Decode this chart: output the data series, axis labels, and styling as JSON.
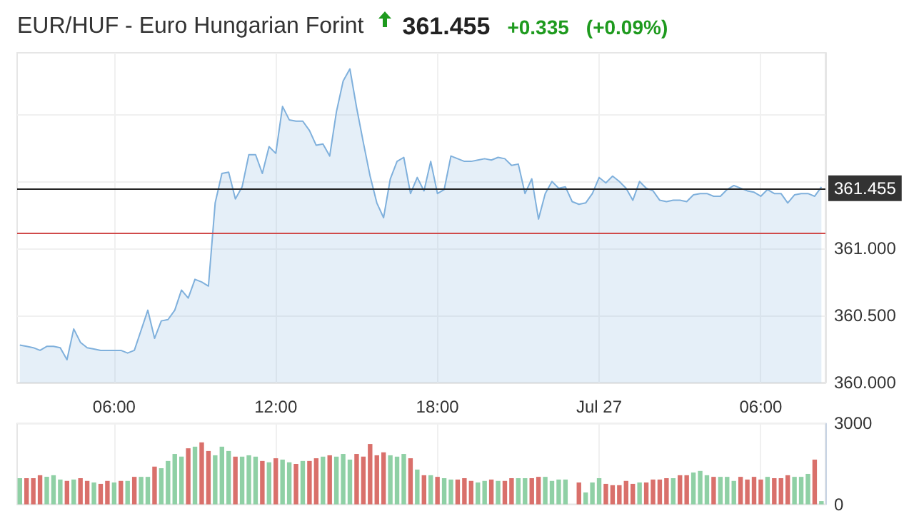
{
  "chart_data": [
    {
      "type": "area",
      "title": "EUR/HUF - Euro Hungarian Forint",
      "annotations": [
        "361.455",
        "+0.335",
        "(+0.09%)"
      ],
      "x": [
        "--07-26T02:30",
        "--07-26T02:45",
        "--07-26T03:00",
        "--07-26T03:15",
        "--07-26T03:30",
        "--07-26T03:45",
        "--07-26T04:00",
        "--07-26T04:15",
        "--07-26T04:30",
        "--07-26T04:45",
        "--07-26T05:00",
        "--07-26T05:15",
        "--07-26T05:30",
        "--07-26T05:45",
        "--07-26T06:00",
        "--07-26T06:15",
        "--07-26T06:30",
        "--07-26T06:45",
        "--07-26T07:00",
        "--07-26T07:15",
        "--07-26T07:30",
        "--07-26T07:45",
        "--07-26T08:00",
        "--07-26T08:15",
        "--07-26T08:30",
        "--07-26T08:45",
        "--07-26T09:00",
        "--07-26T09:15",
        "--07-26T09:30",
        "--07-26T09:45",
        "--07-26T10:00",
        "--07-26T10:15",
        "--07-26T10:30",
        "--07-26T10:45",
        "--07-26T11:00",
        "--07-26T11:15",
        "--07-26T11:30",
        "--07-26T11:45",
        "--07-26T12:00",
        "--07-26T12:15",
        "--07-26T12:30",
        "--07-26T12:45",
        "--07-26T13:00",
        "--07-26T13:15",
        "--07-26T13:30",
        "--07-26T13:45",
        "--07-26T14:00",
        "--07-26T14:15",
        "--07-26T14:30",
        "--07-26T14:45",
        "--07-26T15:00",
        "--07-26T15:15",
        "--07-26T15:30",
        "--07-26T15:45",
        "--07-26T16:00",
        "--07-26T16:15",
        "--07-26T16:30",
        "--07-26T16:45",
        "--07-26T17:00",
        "--07-26T17:15",
        "--07-26T17:30",
        "--07-26T17:45",
        "--07-26T18:00",
        "--07-26T18:15",
        "--07-26T18:30",
        "--07-26T18:45",
        "--07-26T19:00",
        "--07-26T19:15",
        "--07-26T19:30",
        "--07-26T19:45",
        "--07-26T20:00",
        "--07-26T20:15",
        "--07-26T20:30",
        "--07-26T20:45",
        "--07-26T21:00",
        "--07-26T21:15",
        "--07-26T21:30",
        "--07-26T21:45",
        "--07-26T22:00",
        "--07-26T22:15",
        "--07-26T22:30",
        "--07-26T22:45",
        "--07-26T23:00",
        "--07-26T23:15",
        "--07-26T23:30",
        "--07-26T23:45",
        "--07-27T00:00",
        "--07-27T00:15",
        "--07-27T00:30",
        "--07-27T00:45",
        "--07-27T01:00",
        "--07-27T01:15",
        "--07-27T01:30",
        "--07-27T01:45",
        "--07-27T02:00",
        "--07-27T02:15",
        "--07-27T02:30",
        "--07-27T02:45",
        "--07-27T03:00",
        "--07-27T03:15",
        "--07-27T03:30",
        "--07-27T03:45",
        "--07-27T04:00",
        "--07-27T04:15",
        "--07-27T04:30",
        "--07-27T04:45",
        "--07-27T05:00",
        "--07-27T05:15",
        "--07-27T05:30",
        "--07-27T05:45",
        "--07-27T06:00",
        "--07-27T06:15",
        "--07-27T06:30",
        "--07-27T06:45",
        "--07-27T07:00",
        "--07-27T07:15",
        "--07-27T07:30",
        "--07-27T07:45",
        "--07-27T08:00",
        "--07-27T08:15"
      ],
      "series": [
        {
          "color": "#7fb0dc",
          "values": [
            360.28,
            360.27,
            360.26,
            360.24,
            360.27,
            360.27,
            360.26,
            360.17,
            360.4,
            360.3,
            360.26,
            360.25,
            360.24,
            360.24,
            360.24,
            360.24,
            360.22,
            360.24,
            360.39,
            360.54,
            360.33,
            360.46,
            360.47,
            360.54,
            360.69,
            360.63,
            360.77,
            360.75,
            360.72,
            361.34,
            361.56,
            361.57,
            361.37,
            361.46,
            361.7,
            361.7,
            361.56,
            361.76,
            361.71,
            362.06,
            361.96,
            361.95,
            361.95,
            361.88,
            361.77,
            361.78,
            361.69,
            362.02,
            362.25,
            362.34,
            362.05,
            361.79,
            361.54,
            361.34,
            361.23,
            361.52,
            361.65,
            361.68,
            361.41,
            361.53,
            361.43,
            361.65,
            361.41,
            361.44,
            361.69,
            361.67,
            361.65,
            361.65,
            361.66,
            361.67,
            361.66,
            361.68,
            361.67,
            361.62,
            361.63,
            361.41,
            361.52,
            361.22,
            361.41,
            361.5,
            361.45,
            361.46,
            361.35,
            361.33,
            361.34,
            361.41,
            361.53,
            361.49,
            361.54,
            361.5,
            361.45,
            361.36,
            361.5,
            361.45,
            361.43,
            361.36,
            361.35,
            361.36,
            361.36,
            361.35,
            361.4,
            361.41,
            361.41,
            361.39,
            361.39,
            361.44,
            361.47,
            361.45,
            361.43,
            361.42,
            361.39,
            361.44,
            361.41,
            361.41,
            361.34,
            361.4,
            361.41,
            361.41,
            361.39,
            361.46
          ]
        }
      ],
      "xlim": [
        "--07-26T02:24",
        "--07-27T08:24"
      ],
      "xticks": [
        {
          "value": "--07-26T06:00",
          "label": "06:00"
        },
        {
          "value": "--07-26T12:00",
          "label": "12:00"
        },
        {
          "value": "--07-26T18:00",
          "label": "18:00"
        },
        {
          "value": "--07-27T00:00",
          "label": "Jul 27"
        },
        {
          "value": "--07-27T06:00",
          "label": "06:00"
        }
      ],
      "ylim": [
        360,
        362.46
      ],
      "yticks": [
        {
          "value": 360,
          "label": "360.000"
        },
        {
          "value": 360.5,
          "label": "360.500"
        },
        {
          "value": 361,
          "label": "361.000"
        },
        {
          "value": 361.5,
          "label": null
        },
        {
          "value": 362,
          "label": null
        }
      ],
      "ref_lines": [
        {
          "axis": "y",
          "value": 361.455,
          "label": "361.455",
          "color": "#222222"
        },
        {
          "axis": "y",
          "value": 361.12,
          "color": "#d04a4a"
        }
      ],
      "grid": true,
      "marker": "none"
    },
    {
      "type": "bar",
      "x": [
        "--07-26T02:30",
        "--07-26T02:45",
        "--07-26T03:00",
        "--07-26T03:15",
        "--07-26T03:30",
        "--07-26T03:45",
        "--07-26T04:00",
        "--07-26T04:15",
        "--07-26T04:30",
        "--07-26T04:45",
        "--07-26T05:00",
        "--07-26T05:15",
        "--07-26T05:30",
        "--07-26T05:45",
        "--07-26T06:00",
        "--07-26T06:15",
        "--07-26T06:30",
        "--07-26T06:45",
        "--07-26T07:00",
        "--07-26T07:15",
        "--07-26T07:30",
        "--07-26T07:45",
        "--07-26T08:00",
        "--07-26T08:15",
        "--07-26T08:30",
        "--07-26T08:45",
        "--07-26T09:00",
        "--07-26T09:15",
        "--07-26T09:30",
        "--07-26T09:45",
        "--07-26T10:00",
        "--07-26T10:15",
        "--07-26T10:30",
        "--07-26T10:45",
        "--07-26T11:00",
        "--07-26T11:15",
        "--07-26T11:30",
        "--07-26T11:45",
        "--07-26T12:00",
        "--07-26T12:15",
        "--07-26T12:30",
        "--07-26T12:45",
        "--07-26T13:00",
        "--07-26T13:15",
        "--07-26T13:30",
        "--07-26T13:45",
        "--07-26T14:00",
        "--07-26T14:15",
        "--07-26T14:30",
        "--07-26T14:45",
        "--07-26T15:00",
        "--07-26T15:15",
        "--07-26T15:30",
        "--07-26T15:45",
        "--07-26T16:00",
        "--07-26T16:15",
        "--07-26T16:30",
        "--07-26T16:45",
        "--07-26T17:00",
        "--07-26T17:15",
        "--07-26T17:30",
        "--07-26T17:45",
        "--07-26T18:00",
        "--07-26T18:15",
        "--07-26T18:30",
        "--07-26T18:45",
        "--07-26T19:00",
        "--07-26T19:15",
        "--07-26T19:30",
        "--07-26T19:45",
        "--07-26T20:00",
        "--07-26T20:15",
        "--07-26T20:30",
        "--07-26T20:45",
        "--07-26T21:00",
        "--07-26T21:15",
        "--07-26T21:30",
        "--07-26T21:45",
        "--07-26T22:00",
        "--07-26T22:15",
        "--07-26T22:30",
        "--07-26T22:45",
        "--07-26T23:00",
        "--07-26T23:15",
        "--07-26T23:30",
        "--07-26T23:45",
        "--07-27T00:00",
        "--07-27T00:15",
        "--07-27T00:30",
        "--07-27T00:45",
        "--07-27T01:00",
        "--07-27T01:15",
        "--07-27T01:30",
        "--07-27T01:45",
        "--07-27T02:00",
        "--07-27T02:15",
        "--07-27T02:30",
        "--07-27T02:45",
        "--07-27T03:00",
        "--07-27T03:15",
        "--07-27T03:30",
        "--07-27T03:45",
        "--07-27T04:00",
        "--07-27T04:15",
        "--07-27T04:30",
        "--07-27T04:45",
        "--07-27T05:00",
        "--07-27T05:15",
        "--07-27T05:30",
        "--07-27T05:45",
        "--07-27T06:00",
        "--07-27T06:15",
        "--07-27T06:30",
        "--07-27T06:45",
        "--07-27T07:00",
        "--07-27T07:15",
        "--07-27T07:30",
        "--07-27T07:45",
        "--07-27T08:00",
        "--07-27T08:15"
      ],
      "values": [
        970,
        970,
        970,
        1080,
        1020,
        1080,
        920,
        870,
        920,
        970,
        870,
        810,
        760,
        870,
        810,
        870,
        870,
        1020,
        1020,
        1020,
        1400,
        1340,
        1610,
        1870,
        1770,
        2080,
        2140,
        2300,
        1980,
        1820,
        2140,
        1980,
        1770,
        1770,
        1820,
        1770,
        1610,
        1560,
        1710,
        1660,
        1560,
        1500,
        1610,
        1610,
        1710,
        1770,
        1820,
        1770,
        1870,
        1660,
        1870,
        1770,
        2240,
        1820,
        1930,
        1820,
        1770,
        1870,
        1710,
        1290,
        1080,
        1080,
        1020,
        970,
        920,
        920,
        970,
        870,
        810,
        870,
        920,
        870,
        870,
        970,
        970,
        970,
        970,
        1020,
        1020,
        870,
        920,
        920,
        null,
        810,
        440,
        810,
        970,
        760,
        710,
        710,
        870,
        760,
        810,
        810,
        920,
        920,
        970,
        970,
        1080,
        1080,
        1180,
        1240,
        1080,
        1020,
        1020,
        1020,
        870,
        1020,
        920,
        1020,
        920,
        1020,
        970,
        970,
        1080,
        1020,
        1020,
        1130,
        1660,
        120
      ],
      "colors": [
        "#8fd0a5",
        "#d9706b",
        "#d9706b",
        "#d9706b",
        "#8fd0a5",
        "#8fd0a5",
        "#8fd0a5",
        "#d9706b",
        "#8fd0a5",
        "#d9706b",
        "#d9706b",
        "#8fd0a5",
        "#d9706b",
        "#d9706b",
        "#8fd0a5",
        "#d9706b",
        "#8fd0a5",
        "#d9706b",
        "#8fd0a5",
        "#8fd0a5",
        "#d9706b",
        "#8fd0a5",
        "#8fd0a5",
        "#8fd0a5",
        "#8fd0a5",
        "#d9706b",
        "#8fd0a5",
        "#d9706b",
        "#d9706b",
        "#8fd0a5",
        "#8fd0a5",
        "#8fd0a5",
        "#d9706b",
        "#8fd0a5",
        "#8fd0a5",
        "#8fd0a5",
        "#d9706b",
        "#8fd0a5",
        "#d9706b",
        "#8fd0a5",
        "#8fd0a5",
        "#d9706b",
        "#8fd0a5",
        "#d9706b",
        "#d9706b",
        "#8fd0a5",
        "#d9706b",
        "#8fd0a5",
        "#8fd0a5",
        "#8fd0a5",
        "#d9706b",
        "#d9706b",
        "#d9706b",
        "#d9706b",
        "#d9706b",
        "#8fd0a5",
        "#8fd0a5",
        "#8fd0a5",
        "#d9706b",
        "#8fd0a5",
        "#d9706b",
        "#8fd0a5",
        "#d9706b",
        "#8fd0a5",
        "#8fd0a5",
        "#d9706b",
        "#d9706b",
        "#d9706b",
        "#8fd0a5",
        "#8fd0a5",
        "#d9706b",
        "#8fd0a5",
        "#d9706b",
        "#d9706b",
        "#8fd0a5",
        "#8fd0a5",
        "#d9706b",
        "#d9706b",
        "#8fd0a5",
        "#8fd0a5",
        "#8fd0a5",
        "#8fd0a5",
        "#8fd0a5",
        "#d9706b",
        "#8fd0a5",
        "#8fd0a5",
        "#8fd0a5",
        "#d9706b",
        "#d9706b",
        "#d9706b",
        "#d9706b",
        "#d9706b",
        "#8fd0a5",
        "#d9706b",
        "#d9706b",
        "#d9706b",
        "#d9706b",
        "#8fd0a5",
        "#d9706b",
        "#d9706b",
        "#8fd0a5",
        "#8fd0a5",
        "#8fd0a5",
        "#d9706b",
        "#8fd0a5",
        "#8fd0a5",
        "#8fd0a5",
        "#d9706b",
        "#d9706b",
        "#d9706b",
        "#d9706b",
        "#8fd0a5",
        "#d9706b",
        "#d9706b",
        "#d9706b",
        "#8fd0a5",
        "#8fd0a5",
        "#8fd0a5",
        "#d9706b",
        "#8fd0a5"
      ],
      "xlim": [
        "--07-26T02:24",
        "--07-27T08:24"
      ],
      "xticks": [
        {
          "value": "--07-26T06:00",
          "label": null
        },
        {
          "value": "--07-26T12:00",
          "label": null
        },
        {
          "value": "--07-26T18:00",
          "label": null
        },
        {
          "value": "--07-27T00:00",
          "label": null
        },
        {
          "value": "--07-27T06:00",
          "label": null
        }
      ],
      "ylim": [
        0,
        3000
      ],
      "yticks": [
        0,
        3000
      ],
      "tick_labels": "y",
      "grid": true
    }
  ]
}
